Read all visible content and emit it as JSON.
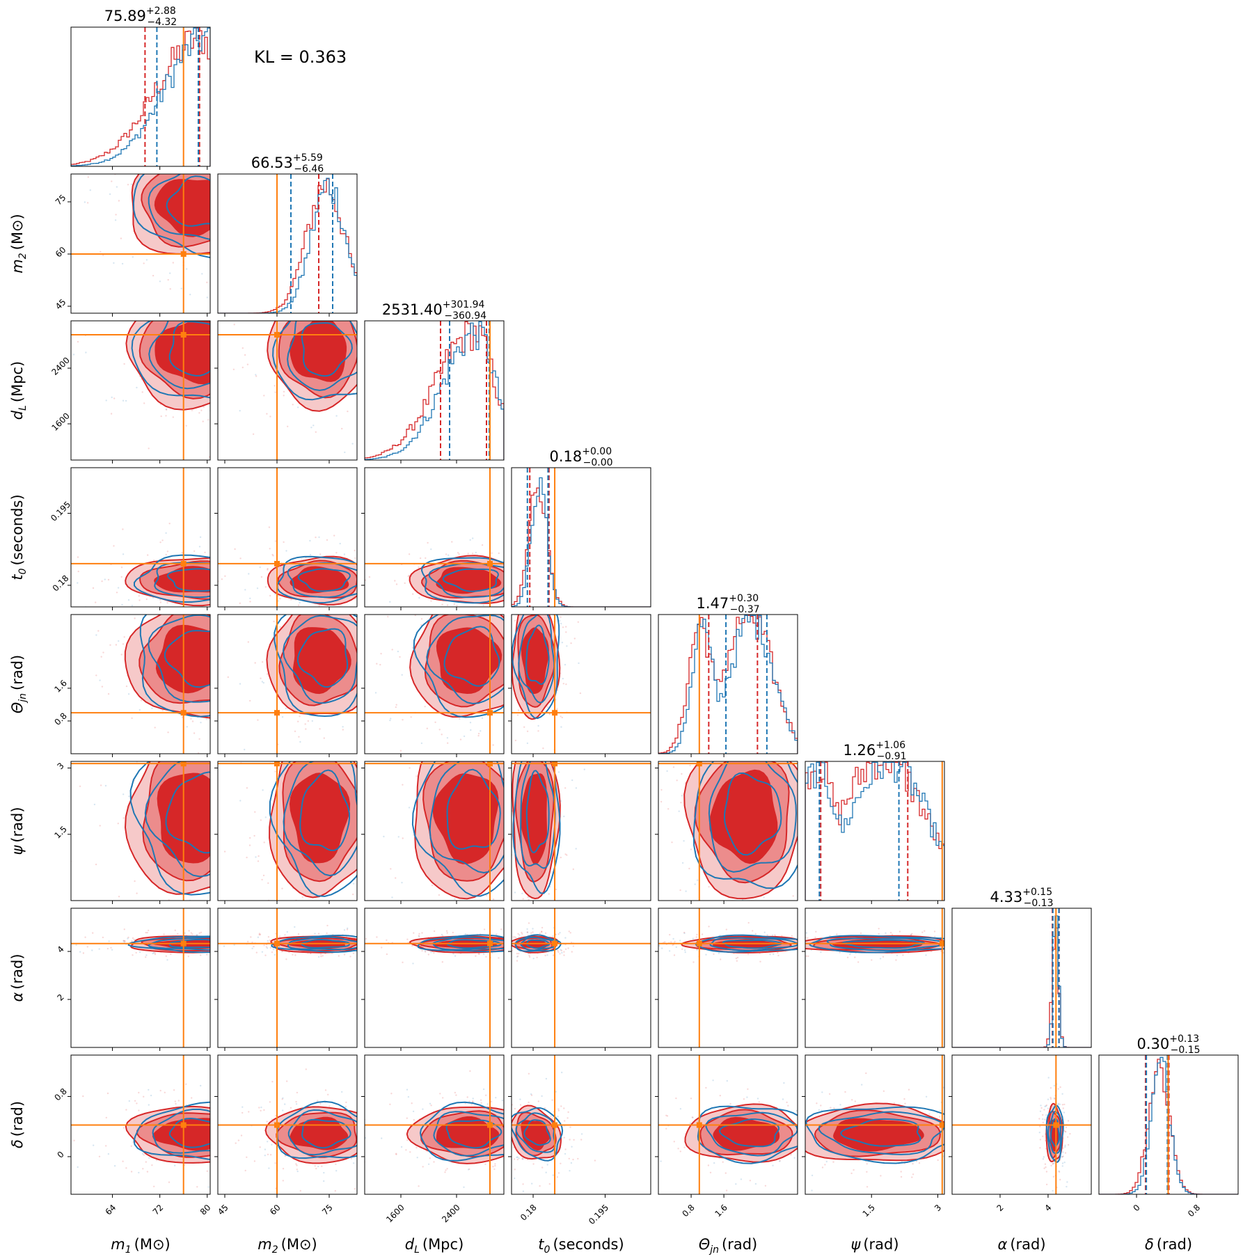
{
  "chart_data": {
    "type": "corner",
    "annotation": "KL = 0.363",
    "colors": {
      "posterior_a": "#d62728",
      "posterior_b": "#1f77b4",
      "truth": "#ff7f0e"
    },
    "grid": false,
    "parameters": [
      {
        "label": "m1",
        "unit": "(M⊙)",
        "sym": "m",
        "sub": "1",
        "range": [
          57,
          80.5
        ],
        "ticks": [
          64,
          72,
          80
        ],
        "truth": 76,
        "median": 75.89,
        "plus": "+2.88",
        "minus": "−4.32",
        "median_text": "75.89",
        "q_a": [
          69.5,
          78.7
        ],
        "q_b": [
          71.5,
          78.5
        ],
        "peak": 79
      },
      {
        "label": "m2",
        "unit": "(M⊙)",
        "sym": "m",
        "sub": "2",
        "range": [
          43,
          83
        ],
        "ticks": [
          45,
          60,
          75
        ],
        "truth": 60,
        "median": 66.53,
        "plus": "+5.59",
        "minus": "−6.46",
        "median_text": "66.53",
        "q_a": [
          60,
          72
        ],
        "q_b": [
          64,
          76
        ],
        "peak": 74
      },
      {
        "label": "dL",
        "unit": "(Mpc)",
        "sym": "d",
        "sub": "L",
        "range": [
          1080,
          3080
        ],
        "ticks": [
          1600,
          2400
        ],
        "truth": 2880,
        "median": 2531.4,
        "plus": "+301.94",
        "minus": "−360.94",
        "median_text": "2531.40",
        "q_a": [
          2170,
          2830
        ],
        "q_b": [
          2300,
          2870
        ],
        "peak": 2650
      },
      {
        "label": "t0",
        "unit": "(seconds)",
        "sym": "t",
        "sub": "0",
        "range": [
          0.1755,
          0.2045
        ],
        "ticks": [
          0.18,
          0.195
        ],
        "truth": 0.1845,
        "median": 0.18,
        "plus": "+0.00",
        "minus": "−0.00",
        "median_text": "0.18",
        "q_a": [
          0.1793,
          0.1833
        ],
        "q_b": [
          0.1788,
          0.1831
        ],
        "peak": 0.181
      },
      {
        "label": "Θjn",
        "unit": "(rad)",
        "sym": "Θ",
        "sub": "jn",
        "range": [
          0.0,
          3.4
        ],
        "ticks": [
          0.8,
          1.6
        ],
        "truth": 1.0,
        "median": 1.47,
        "plus": "+0.30",
        "minus": "−0.37",
        "median_text": "1.47",
        "q_a": [
          1.23,
          2.42
        ],
        "q_b": [
          1.65,
          2.65
        ],
        "peak": 2.3
      },
      {
        "label": "ψ",
        "unit": "(rad)",
        "sym": "ψ",
        "sub": "",
        "range": [
          0.0,
          3.15
        ],
        "ticks": [
          1.5,
          3.0
        ],
        "truth": 3.1,
        "median": 1.26,
        "plus": "+1.06",
        "minus": "−0.91",
        "median_text": "1.26",
        "q_a": [
          0.35,
          2.32
        ],
        "q_b": [
          0.32,
          2.12
        ],
        "peak": 1.9
      },
      {
        "label": "α",
        "unit": "(rad)",
        "sym": "α",
        "sub": "",
        "range": [
          0.0,
          5.8
        ],
        "ticks": [
          2,
          4
        ],
        "truth": 4.33,
        "median": 4.33,
        "plus": "+0.15",
        "minus": "−0.13",
        "median_text": "4.33",
        "q_a": [
          4.18,
          4.46
        ],
        "q_b": [
          4.2,
          4.45
        ],
        "peak": 4.3
      },
      {
        "label": "δ",
        "unit": "(rad)",
        "sym": "δ",
        "sub": "",
        "range": [
          -0.5,
          1.35
        ],
        "ticks": [
          0.0,
          0.8
        ],
        "truth": 0.42,
        "median": 0.3,
        "plus": "+0.13",
        "minus": "−0.15",
        "median_text": "0.30",
        "q_a": [
          0.12,
          0.43
        ],
        "q_b": [
          0.13,
          0.41
        ],
        "peak": 0.3
      }
    ]
  }
}
